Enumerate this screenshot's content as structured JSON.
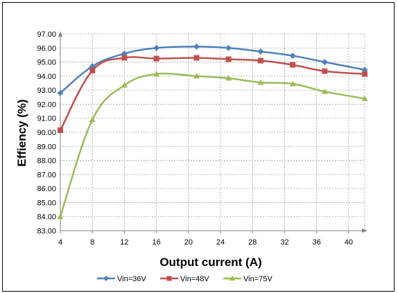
{
  "chart_data": {
    "type": "line",
    "title": "",
    "xlabel": "Output current (A)",
    "ylabel": "Effiency (%)",
    "xlim": [
      4,
      42
    ],
    "ylim": [
      83.0,
      97.0
    ],
    "xticks": [
      4,
      8,
      12,
      16,
      20,
      24,
      28,
      32,
      36,
      40
    ],
    "yticks": [
      "83.00",
      "84.00",
      "85.00",
      "86.00",
      "87.00",
      "88.00",
      "89.00",
      "90.00",
      "91.00",
      "92.00",
      "93.00",
      "94.00",
      "95.00",
      "96.00",
      "97.00"
    ],
    "grid": true,
    "legend_position": "bottom",
    "x": [
      4,
      8,
      12,
      16,
      21,
      25,
      29,
      33,
      37,
      42
    ],
    "series": [
      {
        "name": "Vin=36V",
        "color": "#4F81BD",
        "marker": "diamond",
        "values": [
          92.8,
          94.7,
          95.6,
          96.0,
          96.1,
          96.0,
          95.75,
          95.45,
          95.0,
          94.45
        ]
      },
      {
        "name": "Vin=48V",
        "color": "#C0504D",
        "marker": "square",
        "values": [
          90.15,
          94.4,
          95.3,
          95.25,
          95.3,
          95.2,
          95.1,
          94.8,
          94.35,
          94.15
        ]
      },
      {
        "name": "Vin=75V",
        "color": "#9BBB59",
        "marker": "triangle",
        "values": [
          84.0,
          90.9,
          93.35,
          94.15,
          94.0,
          93.85,
          93.55,
          93.45,
          92.9,
          92.4
        ]
      }
    ]
  }
}
